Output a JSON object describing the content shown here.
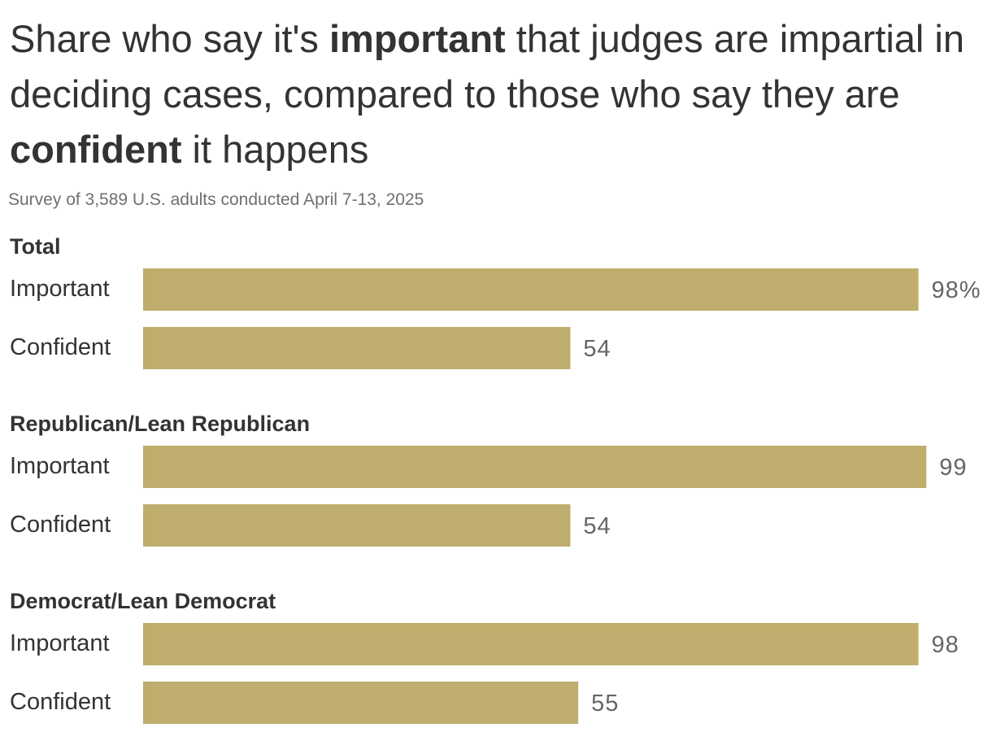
{
  "chart_data": {
    "type": "bar",
    "orientation": "horizontal",
    "title_parts": [
      {
        "text": "Share who say it's ",
        "bold": false
      },
      {
        "text": "important",
        "bold": true
      },
      {
        "text": " that judges are impartial in deciding cases, compared to those who say they are ",
        "bold": false
      },
      {
        "text": "confident",
        "bold": true
      },
      {
        "text": " it happens",
        "bold": false
      }
    ],
    "subtitle": "Survey of 3,589 U.S. adults conducted April 7-13, 2025",
    "xlim": [
      0,
      100
    ],
    "grid": false,
    "legend": "none",
    "bar_color": "#BEAD6C",
    "groups": [
      {
        "label": "Total",
        "bars": [
          {
            "label": "Important",
            "value": 98,
            "value_label": "98%"
          },
          {
            "label": "Confident",
            "value": 54,
            "value_label": "54"
          }
        ]
      },
      {
        "label": "Republican/Lean Republican",
        "bars": [
          {
            "label": "Important",
            "value": 99,
            "value_label": "99"
          },
          {
            "label": "Confident",
            "value": 54,
            "value_label": "54"
          }
        ]
      },
      {
        "label": "Democrat/Lean Democrat",
        "bars": [
          {
            "label": "Important",
            "value": 98,
            "value_label": "98"
          },
          {
            "label": "Confident",
            "value": 55,
            "value_label": "55"
          }
        ]
      }
    ]
  }
}
